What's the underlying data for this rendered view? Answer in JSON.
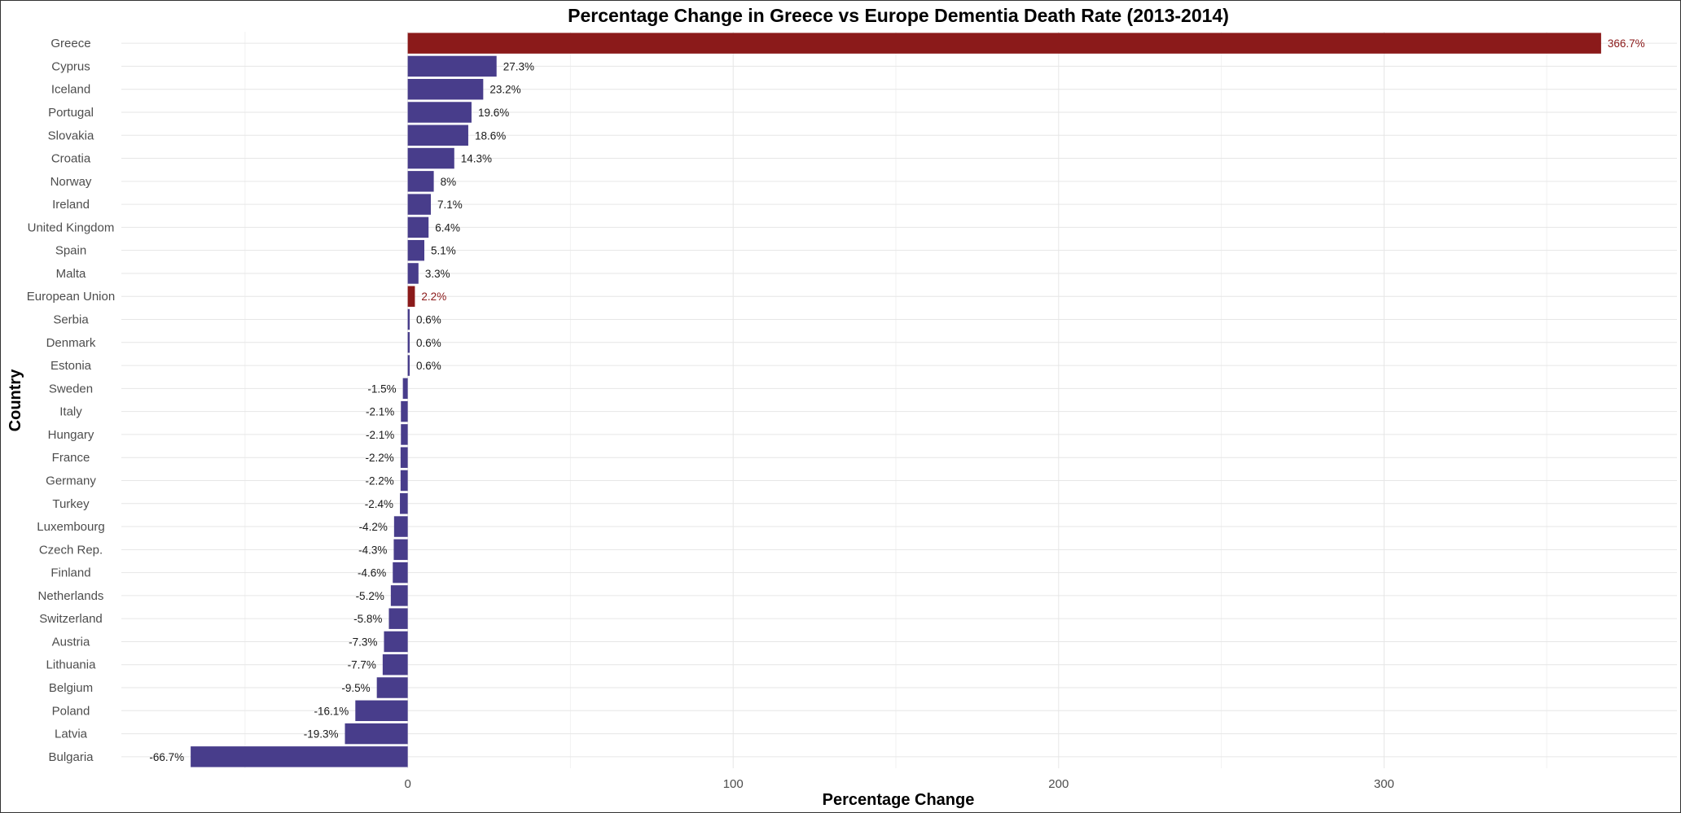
{
  "chart_data": {
    "type": "bar",
    "orientation": "horizontal",
    "title": "Percentage Change in Greece vs Europe Dementia Death Rate (2013-2014)",
    "xlabel": "Percentage Change",
    "ylabel": "Country",
    "xlim": [
      -88,
      390
    ],
    "x_ticks": [
      0,
      100,
      200,
      300
    ],
    "grid": true,
    "legend": "none",
    "colors": {
      "default": "#483D8B",
      "highlight": "#8B1A1A",
      "default_label": "#1a1a1a",
      "highlight_label": "#8B1A1A"
    },
    "bars": [
      {
        "category": "Greece",
        "value": 366.7,
        "label": "366.7%",
        "highlight": true
      },
      {
        "category": "Cyprus",
        "value": 27.3,
        "label": "27.3%",
        "highlight": false
      },
      {
        "category": "Iceland",
        "value": 23.2,
        "label": "23.2%",
        "highlight": false
      },
      {
        "category": "Portugal",
        "value": 19.6,
        "label": "19.6%",
        "highlight": false
      },
      {
        "category": "Slovakia",
        "value": 18.6,
        "label": "18.6%",
        "highlight": false
      },
      {
        "category": "Croatia",
        "value": 14.3,
        "label": "14.3%",
        "highlight": false
      },
      {
        "category": "Norway",
        "value": 8,
        "label": "8%",
        "highlight": false
      },
      {
        "category": "Ireland",
        "value": 7.1,
        "label": "7.1%",
        "highlight": false
      },
      {
        "category": "United Kingdom",
        "value": 6.4,
        "label": "6.4%",
        "highlight": false
      },
      {
        "category": "Spain",
        "value": 5.1,
        "label": "5.1%",
        "highlight": false
      },
      {
        "category": "Malta",
        "value": 3.3,
        "label": "3.3%",
        "highlight": false
      },
      {
        "category": "European Union",
        "value": 2.2,
        "label": "2.2%",
        "highlight": true
      },
      {
        "category": "Serbia",
        "value": 0.6,
        "label": "0.6%",
        "highlight": false
      },
      {
        "category": "Denmark",
        "value": 0.6,
        "label": "0.6%",
        "highlight": false
      },
      {
        "category": "Estonia",
        "value": 0.6,
        "label": "0.6%",
        "highlight": false
      },
      {
        "category": "Sweden",
        "value": -1.5,
        "label": "-1.5%",
        "highlight": false
      },
      {
        "category": "Italy",
        "value": -2.1,
        "label": "-2.1%",
        "highlight": false
      },
      {
        "category": "Hungary",
        "value": -2.1,
        "label": "-2.1%",
        "highlight": false
      },
      {
        "category": "France",
        "value": -2.2,
        "label": "-2.2%",
        "highlight": false
      },
      {
        "category": "Germany",
        "value": -2.2,
        "label": "-2.2%",
        "highlight": false
      },
      {
        "category": "Turkey",
        "value": -2.4,
        "label": "-2.4%",
        "highlight": false
      },
      {
        "category": "Luxembourg",
        "value": -4.2,
        "label": "-4.2%",
        "highlight": false
      },
      {
        "category": "Czech Rep.",
        "value": -4.3,
        "label": "-4.3%",
        "highlight": false
      },
      {
        "category": "Finland",
        "value": -4.6,
        "label": "-4.6%",
        "highlight": false
      },
      {
        "category": "Netherlands",
        "value": -5.2,
        "label": "-5.2%",
        "highlight": false
      },
      {
        "category": "Switzerland",
        "value": -5.8,
        "label": "-5.8%",
        "highlight": false
      },
      {
        "category": "Austria",
        "value": -7.3,
        "label": "-7.3%",
        "highlight": false
      },
      {
        "category": "Lithuania",
        "value": -7.7,
        "label": "-7.7%",
        "highlight": false
      },
      {
        "category": "Belgium",
        "value": -9.5,
        "label": "-9.5%",
        "highlight": false
      },
      {
        "category": "Poland",
        "value": -16.1,
        "label": "-16.1%",
        "highlight": false
      },
      {
        "category": "Latvia",
        "value": -19.3,
        "label": "-19.3%",
        "highlight": false
      },
      {
        "category": "Bulgaria",
        "value": -66.7,
        "label": "-66.7%",
        "highlight": false
      }
    ]
  }
}
